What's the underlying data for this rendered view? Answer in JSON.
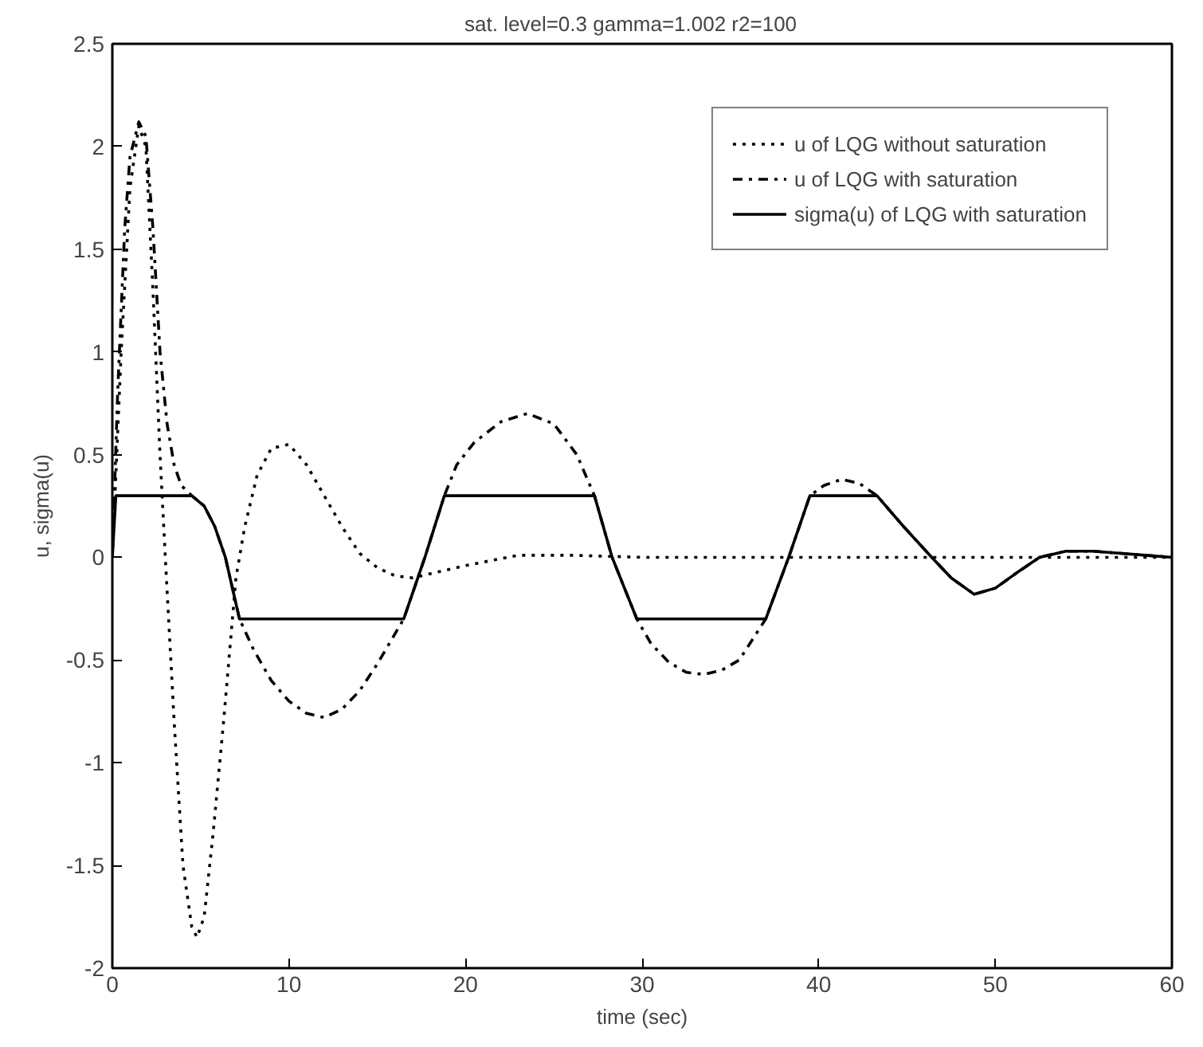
{
  "chart_data": {
    "type": "line",
    "title": "sat. level=0.3   gamma=1.002   r2=100",
    "xlabel": "time (sec)",
    "ylabel": "u, sigma(u)",
    "xlim": [
      0,
      60
    ],
    "ylim": [
      -2,
      2.5
    ],
    "xticks": [
      0,
      10,
      20,
      30,
      40,
      50,
      60
    ],
    "yticks": [
      -2,
      -1.5,
      -1,
      -0.5,
      0,
      0.5,
      1,
      1.5,
      2,
      2.5
    ],
    "grid": false,
    "legend": "top right",
    "series": [
      {
        "name": "u of LQG without saturation",
        "color": "#000000",
        "line_style": "dotted",
        "x": [
          0,
          0.5,
          1,
          1.5,
          1.9,
          2.3,
          2.7,
          3,
          3.5,
          4,
          4.5,
          4.8,
          5.2,
          5.7,
          6.3,
          7,
          7.5,
          8.2,
          9,
          10,
          11,
          12,
          13,
          14,
          15,
          16,
          17,
          18,
          20,
          23,
          26,
          30,
          35,
          40,
          45,
          50,
          55,
          60
        ],
        "values": [
          0,
          1.0,
          1.8,
          2.1,
          2.0,
          1.3,
          0.5,
          0,
          -0.8,
          -1.5,
          -1.8,
          -1.85,
          -1.75,
          -1.35,
          -0.8,
          -0.1,
          0.15,
          0.4,
          0.53,
          0.55,
          0.45,
          0.3,
          0.15,
          0.02,
          -0.05,
          -0.09,
          -0.1,
          -0.08,
          -0.04,
          0.01,
          0.01,
          0,
          0,
          0,
          0,
          0,
          0,
          0
        ]
      },
      {
        "name": "u of LQG with saturation",
        "color": "#000000",
        "line_style": "dashdot",
        "x": [
          0,
          0.3,
          0.7,
          1,
          1.5,
          1.9,
          2.3,
          2.7,
          3.1,
          3.5,
          3.9,
          4.5,
          5.2,
          5.8,
          6.4,
          7.2,
          8,
          9,
          10,
          11,
          12,
          13,
          14,
          15,
          16.5,
          17.7,
          18.8,
          19.5,
          20.5,
          22,
          23.5,
          25,
          26.3,
          27.3,
          28.3,
          29.7,
          30.5,
          31.5,
          32.5,
          33.5,
          34.5,
          35.5,
          37,
          38.3,
          39.5,
          40.3,
          41.3,
          42.3,
          43.3,
          44.8,
          46.4,
          47.5,
          48.8,
          50,
          51.3,
          52.5,
          54,
          55.5,
          57,
          58.5,
          60
        ],
        "values": [
          0,
          0.8,
          1.6,
          1.95,
          2.12,
          2.05,
          1.6,
          1.0,
          0.65,
          0.45,
          0.35,
          0.3,
          0.25,
          0.15,
          0,
          -0.3,
          -0.45,
          -0.6,
          -0.7,
          -0.76,
          -0.78,
          -0.74,
          -0.65,
          -0.52,
          -0.3,
          0,
          0.3,
          0.45,
          0.56,
          0.66,
          0.7,
          0.65,
          0.5,
          0.3,
          0,
          -0.3,
          -0.42,
          -0.51,
          -0.56,
          -0.57,
          -0.55,
          -0.5,
          -0.3,
          0,
          0.3,
          0.35,
          0.38,
          0.36,
          0.3,
          0.15,
          0,
          -0.1,
          -0.18,
          -0.15,
          -0.07,
          0,
          0.03,
          0.03,
          0.02,
          0.01,
          0
        ]
      },
      {
        "name": "sigma(u) of LQG with saturation",
        "color": "#000000",
        "line_style": "solid",
        "x": [
          0,
          0.2,
          3.9,
          4.5,
          5.2,
          5.8,
          6.4,
          7.2,
          16.5,
          17.7,
          18.8,
          27.3,
          28.3,
          29.7,
          37,
          38.3,
          39.5,
          43.3,
          44.8,
          46.4,
          47.5,
          48.8,
          50,
          51.3,
          52.5,
          54,
          55.5,
          57,
          58.5,
          60
        ],
        "values": [
          0,
          0.3,
          0.3,
          0.3,
          0.25,
          0.15,
          0,
          -0.3,
          -0.3,
          0,
          0.3,
          0.3,
          0,
          -0.3,
          -0.3,
          0,
          0.3,
          0.3,
          0.15,
          0,
          -0.1,
          -0.18,
          -0.15,
          -0.07,
          0,
          0.03,
          0.03,
          0.02,
          0.01,
          0
        ]
      }
    ]
  }
}
